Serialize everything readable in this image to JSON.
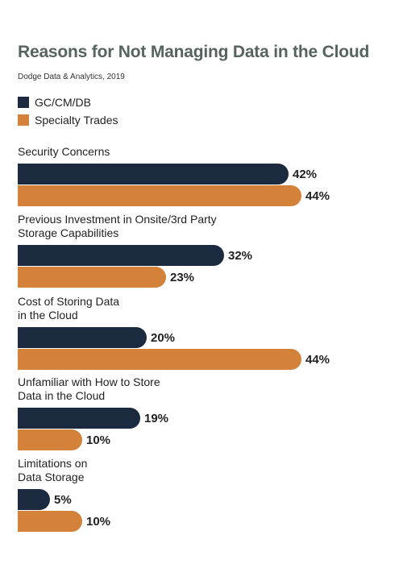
{
  "colors": {
    "gc": "#1c2a3f",
    "specialty": "#d4813a"
  },
  "chart_data": {
    "type": "bar",
    "orientation": "horizontal",
    "title": "Reasons for Not Managing Data in the Cloud",
    "subtitle": "Dodge Data & Analytics, 2019",
    "value_suffix": "%",
    "legend_position": "top-left",
    "xlim": [
      0,
      50
    ],
    "categories": [
      [
        "Security Concerns"
      ],
      [
        "Previous Investment in Onsite/3rd Party",
        "Storage Capabilities"
      ],
      [
        "Cost of Storing Data",
        "in the Cloud"
      ],
      [
        "Unfamiliar with How to Store",
        "Data in the Cloud"
      ],
      [
        "Limitations on",
        "Data Storage"
      ]
    ],
    "series": [
      {
        "name": "GC/CM/DB",
        "color": "#1c2a3f",
        "values": [
          42,
          32,
          20,
          19,
          5
        ]
      },
      {
        "name": "Specialty Trades",
        "color": "#d4813a",
        "values": [
          44,
          23,
          44,
          10,
          10
        ]
      }
    ]
  }
}
